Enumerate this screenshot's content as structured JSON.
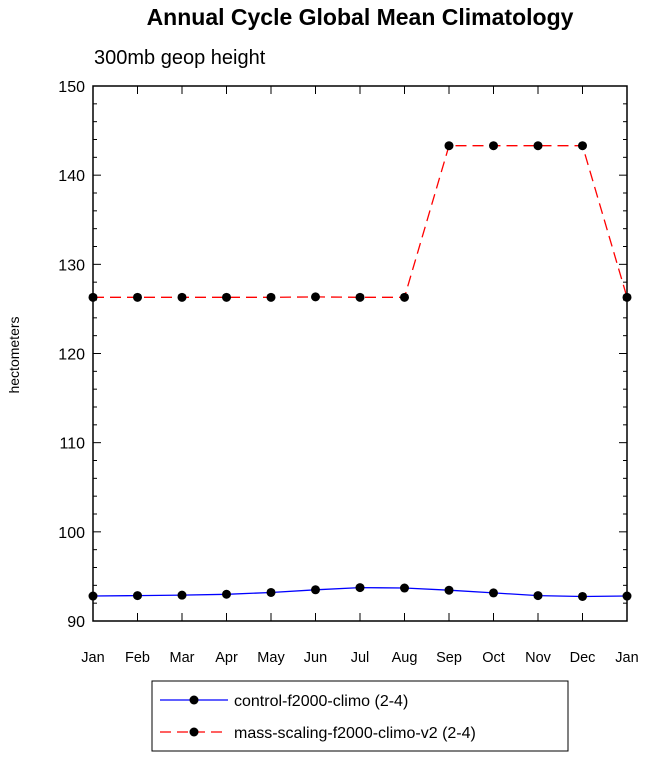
{
  "chart_data": {
    "type": "line",
    "title": "Annual Cycle Global Mean Climatology",
    "subtitle": "300mb geop height",
    "xlabel": "",
    "ylabel": "hectometers",
    "categories": [
      "Jan",
      "Feb",
      "Mar",
      "Apr",
      "May",
      "Jun",
      "Jul",
      "Aug",
      "Sep",
      "Oct",
      "Nov",
      "Dec",
      "Jan"
    ],
    "ylim": [
      90,
      150
    ],
    "yticks": [
      90,
      100,
      110,
      120,
      130,
      140,
      150
    ],
    "yminor_step": 2,
    "grid": false,
    "legend_position": "bottom-center",
    "series": [
      {
        "name": "control-f2000-climo (2-4)",
        "color": "#0000ff",
        "style": "solid",
        "marker": "circle",
        "values": [
          92.8,
          92.85,
          92.9,
          93.0,
          93.2,
          93.5,
          93.75,
          93.7,
          93.45,
          93.15,
          92.85,
          92.75,
          92.8
        ]
      },
      {
        "name": "mass-scaling-f2000-climo-v2 (2-4)",
        "color": "#ff0000",
        "style": "dashed",
        "marker": "circle",
        "values": [
          126.3,
          126.3,
          126.3,
          126.3,
          126.3,
          126.35,
          126.3,
          126.3,
          143.3,
          143.3,
          143.3,
          143.3,
          126.3
        ]
      }
    ]
  }
}
